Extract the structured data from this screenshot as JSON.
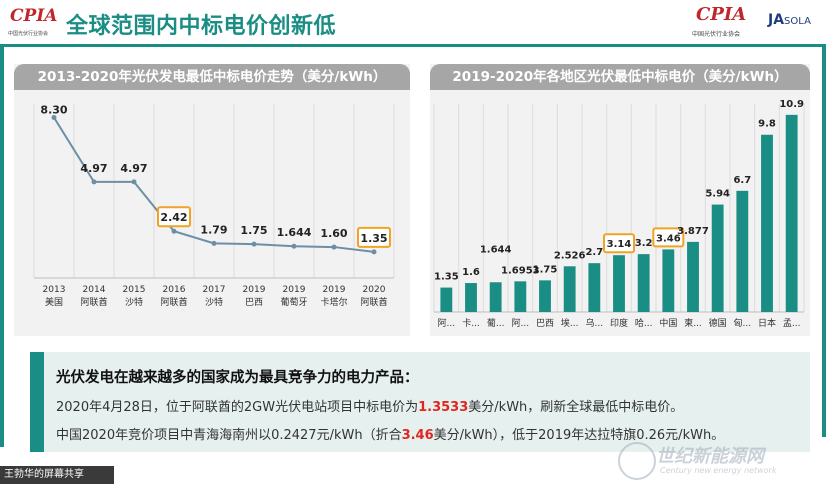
{
  "header": {
    "title": "全球范围内中标电价创新低",
    "logo_left": {
      "text": "CPIA",
      "sub": "中国光伏行业协会"
    },
    "logo_right_cpia": {
      "text": "CPIA",
      "sub": "中国光伏行业协会"
    },
    "logo_ja": {
      "text": "JA",
      "sub": "SOLA"
    }
  },
  "chart_data": [
    {
      "type": "line",
      "title": "2013-2020年光伏发电最低中标电价走势（美分/kWh）",
      "categories": [
        "2013\n美国",
        "2014\n阿联酋",
        "2015\n沙特",
        "2016\n阿联酋",
        "2017\n沙特",
        "2019\n巴西",
        "2019\n葡萄牙",
        "2019\n卡塔尔",
        "2020\n阿联酋"
      ],
      "x_years": [
        "2013",
        "2014",
        "2015",
        "2016",
        "2017",
        "2019",
        "2019",
        "2019",
        "2020"
      ],
      "x_countries": [
        "美国",
        "阿联酋",
        "沙特",
        "阿联酋",
        "沙特",
        "巴西",
        "葡萄牙",
        "卡塔尔",
        "阿联酋"
      ],
      "values": [
        8.3,
        4.97,
        4.97,
        2.42,
        1.79,
        1.75,
        1.644,
        1.6,
        1.35
      ],
      "labels": [
        "8.30",
        "4.97",
        "4.97",
        "2.42",
        "1.79",
        "1.75",
        "1.644",
        "1.60",
        "1.35"
      ],
      "highlighted": [
        3,
        8
      ],
      "ylim": [
        0,
        9
      ],
      "grid": true,
      "colors": {
        "line": "#6d8fa6",
        "highlight": "#f0a324"
      }
    },
    {
      "type": "bar",
      "title": "2019-2020年各地区光伏最低中标电价（美分/kWh）",
      "categories": [
        "阿...",
        "卡...",
        "葡...",
        "阿...",
        "巴西",
        "埃...",
        "乌...",
        "印度",
        "哈...",
        "中国",
        "柬...",
        "德国",
        "匈...",
        "日本",
        "孟..."
      ],
      "values": [
        1.35,
        1.6,
        1.644,
        1.6953,
        1.75,
        2.526,
        2.7,
        3.14,
        3.2,
        3.46,
        3.877,
        5.94,
        6.7,
        9.8,
        10.9
      ],
      "labels": [
        "1.35",
        "1.6",
        "1.644",
        "1.6953",
        "1.75",
        "2.526",
        "2.7",
        "3.14",
        "3.2",
        "3.46",
        "3.877",
        "5.94",
        "6.7",
        "9.8",
        "10.9"
      ],
      "highlighted": [
        7,
        9
      ],
      "ylim": [
        0,
        11.5
      ],
      "grid": true,
      "colors": {
        "bar": "#1a8d85",
        "highlight": "#f0a324"
      }
    }
  ],
  "textbox": {
    "heading": "光伏发电在越来越多的国家成为最具竞争力的电力产品：",
    "line2_a": "2020年4月28日，位于阿联酋的2GW光伏电站项目中标电价为",
    "line2_red": "1.3533",
    "line2_b": "美分/kWh，刷新全球最低中标电价。",
    "line3_a": "中国2020年竞价项目中青海海南州以0.2427元/kWh（折合",
    "line3_red": "3.46",
    "line3_b": "美分/kWh），低于2019年达拉特旗0.26元/kWh。"
  },
  "status": {
    "text": "王勃华的屏幕共享"
  },
  "watermark": {
    "text": "世纪新能源网",
    "sub": "Century new energy network"
  }
}
